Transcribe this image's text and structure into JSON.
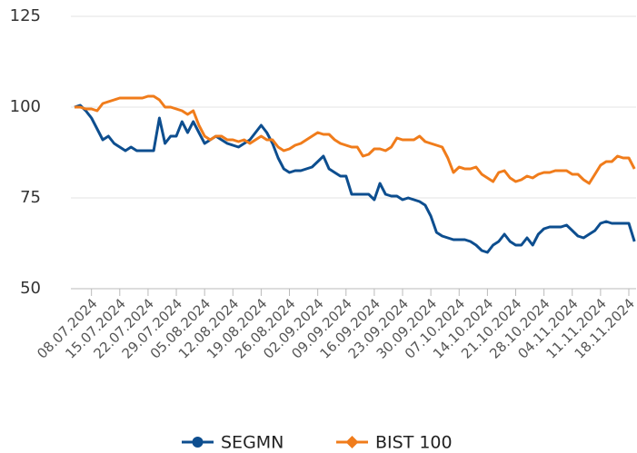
{
  "chart_data": {
    "type": "line",
    "categories": [
      null,
      null,
      null,
      "08.07.2024",
      null,
      null,
      null,
      null,
      "15.07.2024",
      null,
      null,
      null,
      null,
      "22.07.2024",
      null,
      null,
      null,
      null,
      "29.07.2024",
      null,
      null,
      null,
      null,
      "05.08.2024",
      null,
      null,
      null,
      null,
      "12.08.2024",
      null,
      null,
      null,
      null,
      "19.08.2024",
      null,
      null,
      null,
      null,
      "26.08.2024",
      null,
      null,
      null,
      null,
      "02.09.2024",
      null,
      null,
      null,
      null,
      "09.09.2024",
      null,
      null,
      null,
      null,
      "16.09.2024",
      null,
      null,
      null,
      null,
      "23.09.2024",
      null,
      null,
      null,
      null,
      "30.09.2024",
      null,
      null,
      null,
      null,
      "07.10.2024",
      null,
      null,
      null,
      null,
      "14.10.2024",
      null,
      null,
      null,
      null,
      "21.10.2024",
      null,
      null,
      null,
      null,
      "28.10.2024",
      null,
      null,
      null,
      null,
      "04.11.2024",
      null,
      null,
      null,
      null,
      "11.11.2024",
      null,
      null,
      null,
      null,
      "18.11.2024",
      null
    ],
    "series": [
      {
        "name": "SEGMN",
        "color": "#0d4e8f",
        "values": [
          100,
          100.5,
          99,
          97,
          94,
          91,
          92,
          90,
          89,
          88,
          89,
          88,
          88,
          88,
          88,
          97,
          90,
          92,
          92,
          96,
          93,
          96,
          93,
          90,
          91,
          92,
          91,
          90,
          89.5,
          89,
          90,
          91,
          93,
          95,
          93,
          90,
          86,
          83,
          82,
          82.5,
          82.5,
          83,
          83.5,
          85,
          86.5,
          83,
          82,
          81,
          81,
          76,
          76,
          76,
          76,
          74.5,
          79,
          76,
          75.5,
          75.5,
          74.5,
          75,
          74.5,
          74,
          73,
          70,
          65.5,
          64.5,
          64,
          63.5,
          63.5,
          63.5,
          63,
          62,
          60.5,
          60,
          62,
          63,
          65,
          63,
          62,
          62,
          64,
          62,
          65,
          66.5,
          67,
          67,
          67,
          67.5,
          66,
          64.5,
          64,
          65,
          66,
          68,
          68.5,
          68,
          68,
          68,
          68,
          63
        ]
      },
      {
        "name": "BIST 100",
        "color": "#f07c1b",
        "values": [
          100,
          100,
          99.5,
          99.5,
          99,
          101,
          101.5,
          102,
          102.5,
          102.5,
          102.5,
          102.5,
          102.5,
          103,
          103,
          102,
          100,
          100,
          99.5,
          99,
          98,
          99,
          95,
          92,
          91,
          92,
          92,
          91,
          91,
          90.5,
          91,
          90,
          91,
          92,
          91,
          91,
          89,
          88,
          88.5,
          89.5,
          90,
          91,
          92,
          93,
          92.5,
          92.5,
          91,
          90,
          89.5,
          89,
          89,
          86.5,
          87,
          88.5,
          88.5,
          88,
          89,
          91.5,
          91,
          91,
          91,
          92,
          90.5,
          90,
          89.5,
          89,
          86,
          82,
          83.5,
          83,
          83,
          83.5,
          81.5,
          80.5,
          79.5,
          82,
          82.5,
          80.5,
          79.5,
          80,
          81,
          80.5,
          81.5,
          82,
          82,
          82.5,
          82.5,
          82.5,
          81.5,
          81.5,
          80,
          79,
          81.5,
          84,
          85,
          85,
          86.5,
          86,
          86,
          83
        ]
      }
    ],
    "ylim": [
      50,
      125
    ],
    "yticks": [
      50,
      75,
      100,
      125
    ],
    "grid": true,
    "legend": "bottom"
  }
}
